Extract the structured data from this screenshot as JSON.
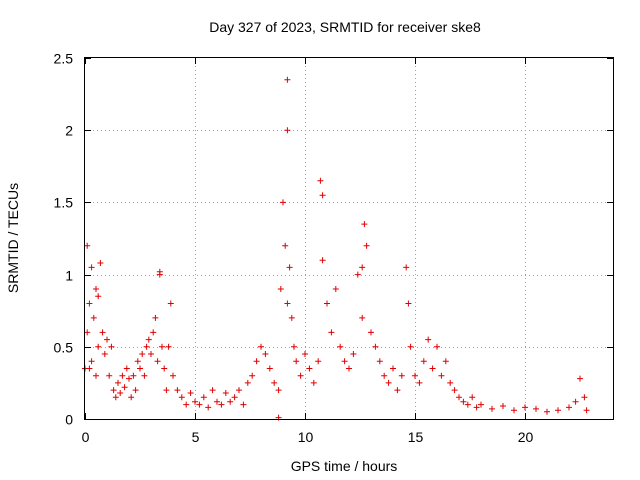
{
  "chart_data": {
    "type": "scatter",
    "title": "Day 327 of 2023, SRMTID for receiver ske8",
    "xlabel": "GPS time / hours",
    "ylabel": "SRMTID / TECUs",
    "xlim": [
      0,
      24
    ],
    "ylim": [
      0,
      2.5
    ],
    "xticks": [
      0,
      5,
      10,
      15,
      20
    ],
    "xtick_labels": [
      "0",
      "5",
      "10",
      "15",
      "20"
    ],
    "yticks": [
      0,
      0.5,
      1,
      1.5,
      2,
      2.5
    ],
    "ytick_labels": [
      "0",
      "0.5",
      "1",
      "1.5",
      "2",
      "2.5"
    ],
    "grid": true,
    "marker": "+",
    "color": "#e00000",
    "series": [
      {
        "name": "SRMTID",
        "x": [
          0.0,
          0.1,
          0.1,
          0.2,
          0.3,
          0.3,
          0.4,
          0.5,
          0.5,
          0.6,
          0.7,
          0.8,
          0.9,
          1.0,
          1.1,
          1.2,
          1.3,
          1.4,
          1.5,
          1.6,
          1.7,
          1.8,
          1.9,
          2.0,
          2.1,
          2.2,
          2.3,
          2.4,
          2.5,
          2.6,
          2.7,
          2.8,
          2.9,
          3.0,
          3.1,
          3.2,
          3.3,
          3.4,
          3.5,
          3.6,
          3.7,
          3.8,
          3.9,
          4.0,
          4.2,
          4.4,
          4.6,
          4.8,
          5.0,
          5.2,
          5.4,
          5.6,
          5.8,
          6.0,
          6.2,
          6.4,
          6.6,
          6.8,
          7.0,
          7.2,
          7.4,
          7.6,
          7.8,
          8.0,
          8.2,
          8.4,
          8.6,
          8.8,
          8.9,
          9.0,
          9.1,
          9.2,
          9.3,
          9.4,
          9.5,
          9.6,
          9.8,
          10.0,
          10.2,
          10.4,
          10.6,
          10.7,
          10.8,
          11.0,
          11.2,
          11.4,
          11.6,
          11.8,
          12.0,
          12.2,
          12.4,
          12.6,
          12.7,
          12.8,
          13.0,
          13.2,
          13.4,
          13.6,
          13.8,
          14.0,
          14.2,
          14.4,
          14.6,
          14.7,
          14.8,
          15.0,
          15.2,
          15.4,
          15.6,
          15.8,
          16.0,
          16.2,
          16.4,
          16.6,
          16.8,
          17.0,
          17.2,
          17.4,
          17.6,
          17.8,
          18.0,
          18.5,
          19.0,
          19.5,
          20.0,
          20.5,
          21.0,
          21.5,
          22.0,
          22.3,
          22.5,
          22.7,
          22.8,
          8.8,
          9.2,
          9.2,
          10.8,
          12.6,
          3.4,
          0.2,
          0.6
        ],
        "y": [
          0.35,
          1.2,
          0.6,
          0.8,
          0.4,
          1.05,
          0.7,
          0.3,
          0.9,
          0.5,
          1.08,
          0.6,
          0.45,
          0.55,
          0.3,
          0.5,
          0.2,
          0.15,
          0.25,
          0.18,
          0.3,
          0.22,
          0.35,
          0.28,
          0.15,
          0.3,
          0.2,
          0.4,
          0.35,
          0.45,
          0.3,
          0.5,
          0.55,
          0.45,
          0.6,
          0.7,
          0.4,
          1.0,
          0.5,
          0.35,
          0.2,
          0.5,
          0.8,
          0.3,
          0.2,
          0.15,
          0.1,
          0.18,
          0.12,
          0.1,
          0.15,
          0.08,
          0.2,
          0.12,
          0.1,
          0.18,
          0.12,
          0.15,
          0.2,
          0.1,
          0.25,
          0.3,
          0.4,
          0.5,
          0.45,
          0.35,
          0.25,
          0.2,
          0.9,
          1.5,
          1.2,
          0.8,
          1.05,
          0.7,
          0.5,
          0.4,
          0.3,
          0.45,
          0.35,
          0.25,
          0.4,
          1.65,
          1.1,
          0.8,
          0.6,
          0.9,
          0.5,
          0.4,
          0.35,
          0.45,
          1.0,
          0.7,
          1.35,
          1.2,
          0.6,
          0.5,
          0.4,
          0.3,
          0.25,
          0.35,
          0.2,
          0.3,
          1.05,
          0.8,
          0.5,
          0.3,
          0.25,
          0.4,
          0.55,
          0.35,
          0.5,
          0.3,
          0.4,
          0.25,
          0.2,
          0.15,
          0.12,
          0.1,
          0.15,
          0.08,
          0.1,
          0.07,
          0.09,
          0.06,
          0.08,
          0.07,
          0.05,
          0.06,
          0.08,
          0.12,
          0.28,
          0.15,
          0.06,
          0.01,
          2.35,
          2.0,
          1.55,
          1.05,
          1.02,
          0.35,
          0.85
        ]
      }
    ]
  }
}
